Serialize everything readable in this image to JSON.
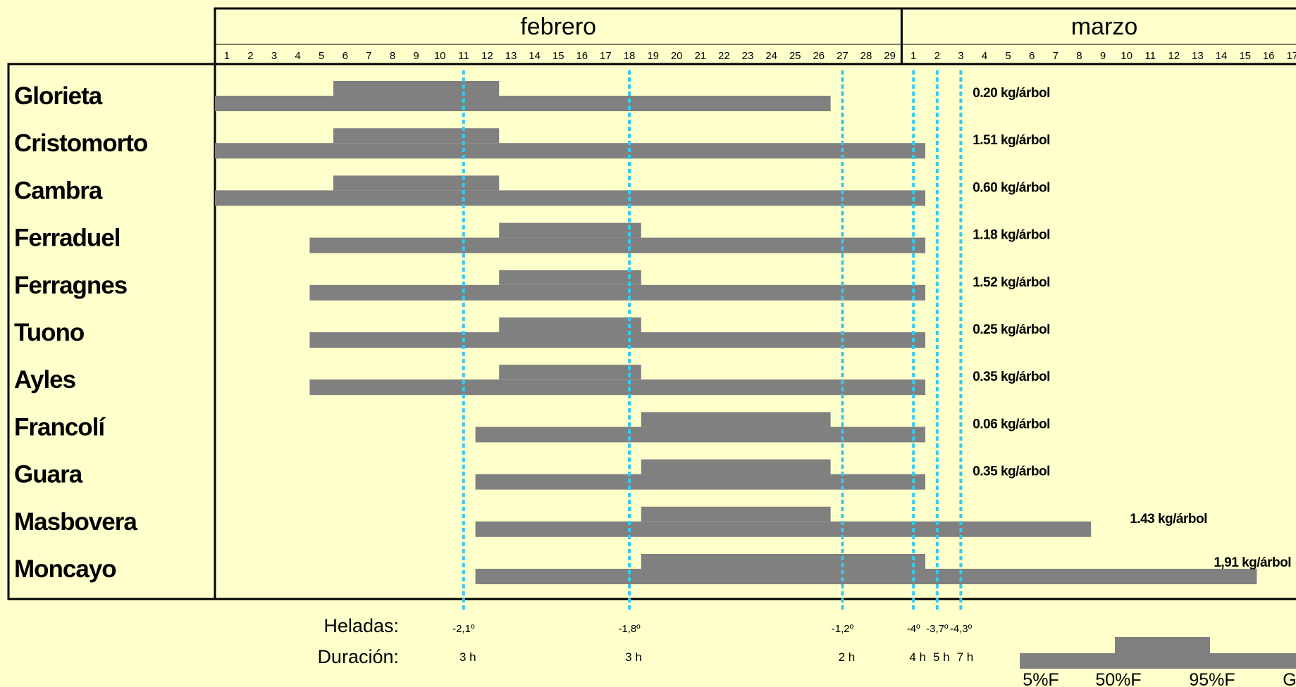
{
  "chart_data": {
    "type": "bar",
    "months": [
      {
        "name": "febrero",
        "days": 29
      },
      {
        "name": "marzo",
        "days": 17
      }
    ],
    "rows": [
      {
        "variety": "Glorieta",
        "first": {
          "month": "febrero",
          "day": 1
        },
        "full_start": {
          "month": "febrero",
          "day": 5
        },
        "full_end": {
          "month": "febrero",
          "day": 12
        },
        "last": {
          "month": "febrero",
          "day": 26
        },
        "yield": "0.20 kg/árbol"
      },
      {
        "variety": "Cristomorto",
        "first": {
          "month": "febrero",
          "day": 1
        },
        "full_start": {
          "month": "febrero",
          "day": 5
        },
        "full_end": {
          "month": "febrero",
          "day": 12
        },
        "last": {
          "month": "marzo",
          "day": 1
        },
        "yield": "1.51 kg/árbol"
      },
      {
        "variety": "Cambra",
        "first": {
          "month": "febrero",
          "day": 1
        },
        "full_start": {
          "month": "febrero",
          "day": 5
        },
        "full_end": {
          "month": "febrero",
          "day": 12
        },
        "last": {
          "month": "marzo",
          "day": 1
        },
        "yield": "0.60 kg/árbol"
      },
      {
        "variety": "Ferraduel",
        "first": {
          "month": "febrero",
          "day": 5
        },
        "full_start": {
          "month": "febrero",
          "day": 12
        },
        "full_end": {
          "month": "febrero",
          "day": 18
        },
        "last": {
          "month": "marzo",
          "day": 1
        },
        "yield": "1.18 kg/árbol"
      },
      {
        "variety": "Ferragnes",
        "first": {
          "month": "febrero",
          "day": 5
        },
        "full_start": {
          "month": "febrero",
          "day": 12
        },
        "full_end": {
          "month": "febrero",
          "day": 18
        },
        "last": {
          "month": "marzo",
          "day": 1
        },
        "yield": "1.52 kg/árbol"
      },
      {
        "variety": "Tuono",
        "first": {
          "month": "febrero",
          "day": 5
        },
        "full_start": {
          "month": "febrero",
          "day": 12
        },
        "full_end": {
          "month": "febrero",
          "day": 18
        },
        "last": {
          "month": "marzo",
          "day": 1
        },
        "yield": "0.25 kg/árbol"
      },
      {
        "variety": "Ayles",
        "first": {
          "month": "febrero",
          "day": 5
        },
        "full_start": {
          "month": "febrero",
          "day": 12
        },
        "full_end": {
          "month": "febrero",
          "day": 18
        },
        "last": {
          "month": "marzo",
          "day": 1
        },
        "yield": "0.35 kg/árbol"
      },
      {
        "variety": "Francolí",
        "first": {
          "month": "febrero",
          "day": 12
        },
        "full_start": {
          "month": "febrero",
          "day": 18
        },
        "full_end": {
          "month": "febrero",
          "day": 26
        },
        "last": {
          "month": "marzo",
          "day": 1
        },
        "yield": "0.06 kg/árbol"
      },
      {
        "variety": "Guara",
        "first": {
          "month": "febrero",
          "day": 12
        },
        "full_start": {
          "month": "febrero",
          "day": 18
        },
        "full_end": {
          "month": "febrero",
          "day": 26
        },
        "last": {
          "month": "marzo",
          "day": 1
        },
        "yield": "0.35 kg/árbol"
      },
      {
        "variety": "Masbovera",
        "first": {
          "month": "febrero",
          "day": 12
        },
        "full_start": {
          "month": "febrero",
          "day": 18
        },
        "full_end": {
          "month": "febrero",
          "day": 26
        },
        "last": {
          "month": "marzo",
          "day": 8
        },
        "yield": "1.43 kg/árbol"
      },
      {
        "variety": "Moncayo",
        "first": {
          "month": "febrero",
          "day": 12
        },
        "full_start": {
          "month": "febrero",
          "day": 18
        },
        "full_end": {
          "month": "marzo",
          "day": 1
        },
        "last": {
          "month": "marzo",
          "day": 15
        },
        "yield": "1,91 kg/árbol"
      }
    ],
    "frosts": [
      {
        "month": "febrero",
        "day": 11,
        "temp": "-2,1º",
        "duration": "3 h"
      },
      {
        "month": "febrero",
        "day": 18,
        "temp": "-1,8º",
        "duration": "3 h"
      },
      {
        "month": "febrero",
        "day": 27,
        "temp": "-1,2º",
        "duration": "2 h"
      },
      {
        "month": "marzo",
        "day": 1,
        "temp": "-4º",
        "duration": "4 h"
      },
      {
        "month": "marzo",
        "day": 2,
        "temp": "-3,7º",
        "duration": "5 h"
      },
      {
        "month": "marzo",
        "day": 3,
        "temp": "-4,3º",
        "duration": "7 h"
      }
    ],
    "frost_label": "Heladas:",
    "duration_label": "Duración:",
    "legend": [
      "5%F",
      "50%F",
      "95%F",
      "G"
    ],
    "colors": {
      "bar": "#808080",
      "frost_line": "#33ccee",
      "background": "#ffffcc",
      "border": "#000000"
    }
  }
}
